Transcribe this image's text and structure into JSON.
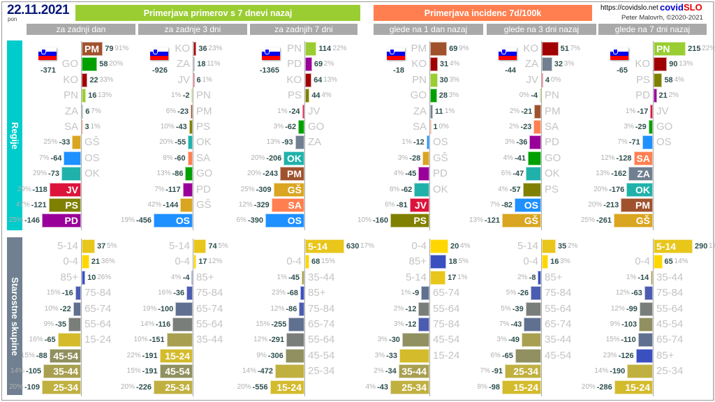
{
  "header": {
    "date": "22.11.2021",
    "weekday": "pon",
    "title_cases": "Primerjava primerov s 7 dnevi nazaj",
    "title_incidence": "Primerjava incidenc 7d/100k",
    "url": "https://covidslo.net",
    "brand_a": "covid",
    "brand_b": "SLO",
    "author": "Peter Malovrh, ©2020-2021",
    "colors": {
      "cases": "#9acd32",
      "incidence": "#ff7f50",
      "sub": "#a9a9a9"
    }
  },
  "subheaders": [
    "za zadnji dan",
    "za zadnje 3 dni",
    "za zadnjih 7 dni",
    "glede na 1 dan nazaj",
    "glede na 3 dni nazaj",
    "glede na 7 dni nazaj"
  ],
  "sections": {
    "regions": "Regije",
    "ages": "Starostne skupine"
  },
  "region_colors": {
    "PM": "#a0522d",
    "GO": "#00a000",
    "KO": "#a00000",
    "PN": "#9acd32",
    "ZA": "#708090",
    "SA": "#ff7f50",
    "GŠ": "#daa520",
    "OS": "#1e90ff",
    "OK": "#20b2aa",
    "JV": "#dc143c",
    "PS": "#808000",
    "PD": "#990099"
  },
  "age_colors": {
    "0-4": "#ffd700",
    "5-14": "#e8c61a",
    "15-24": "#d4bb2c",
    "25-34": "#c0b040",
    "35-44": "#a8a050",
    "45-54": "#909060",
    "55-64": "#7a7e7a",
    "65-74": "#607090",
    "75-84": "#4c5cb0",
    "85+": "#3a50c0"
  },
  "panels": [
    {
      "total": "-371",
      "regions": [
        [
          "PM",
          79,
          "91%"
        ],
        [
          "GO",
          58,
          "20%"
        ],
        [
          "KO",
          22,
          "33%"
        ],
        [
          "PN",
          16,
          "13%"
        ],
        [
          "ZA",
          6,
          "7%"
        ],
        [
          "SA",
          3,
          "1%"
        ],
        [
          "GŠ",
          -33,
          "25%"
        ],
        [
          "OS",
          -64,
          "7%"
        ],
        [
          "OK",
          -73,
          "29%"
        ],
        [
          "JV",
          -118,
          "29%"
        ],
        [
          "PS",
          -121,
          "47%"
        ],
        [
          "PD",
          -146,
          "25%"
        ]
      ],
      "ages": [
        [
          "5-14",
          37,
          "5%"
        ],
        [
          "0-4",
          21,
          "36%"
        ],
        [
          "85+",
          10,
          "26%"
        ],
        [
          "75-84",
          -16,
          "15%"
        ],
        [
          "65-74",
          -22,
          "10%"
        ],
        [
          "55-64",
          -35,
          "9%"
        ],
        [
          "15-24",
          -65,
          "16%"
        ],
        [
          "45-54",
          -88,
          "15%"
        ],
        [
          "35-44",
          -105,
          "14%"
        ],
        [
          "25-34",
          -109,
          "20%"
        ]
      ]
    },
    {
      "total": "-926",
      "regions": [
        [
          "KO",
          36,
          "23%"
        ],
        [
          "ZA",
          18,
          "11%"
        ],
        [
          "JV",
          6,
          "1%"
        ],
        [
          "PN",
          -2,
          "1%"
        ],
        [
          "PM",
          -23,
          "6%"
        ],
        [
          "PS",
          -43,
          "10%"
        ],
        [
          "OK",
          -55,
          "20%"
        ],
        [
          "SA",
          -60,
          "8%"
        ],
        [
          "GO",
          -86,
          "13%"
        ],
        [
          "PD",
          -117,
          "7%"
        ],
        [
          "GŠ",
          -144,
          "42%"
        ],
        [
          "OS",
          -456,
          "19%"
        ]
      ],
      "ages": [
        [
          "5-14",
          74,
          "5%"
        ],
        [
          "0-4",
          17,
          "12%"
        ],
        [
          "85+",
          -4,
          "4%"
        ],
        [
          "75-84",
          -36,
          "16%"
        ],
        [
          "65-74",
          -100,
          "19%"
        ],
        [
          "55-64",
          -116,
          "14%"
        ],
        [
          "35-44",
          -151,
          "10%"
        ],
        [
          "15-24",
          -191,
          "22%"
        ],
        [
          "45-54",
          -191,
          "15%"
        ],
        [
          "25-34",
          -226,
          "20%"
        ]
      ]
    },
    {
      "total": "-1365",
      "regions": [
        [
          "PN",
          114,
          "22%"
        ],
        [
          "PD",
          69,
          "2%"
        ],
        [
          "KO",
          64,
          "13%"
        ],
        [
          "PS",
          44,
          "4%"
        ],
        [
          "JV",
          -24,
          "1%"
        ],
        [
          "GO",
          -62,
          "3%"
        ],
        [
          "ZA",
          -93,
          "13%"
        ],
        [
          "OK",
          -206,
          "20%"
        ],
        [
          "PM",
          -243,
          "20%"
        ],
        [
          "GŠ",
          -309,
          "25%"
        ],
        [
          "SA",
          -329,
          "12%"
        ],
        [
          "OS",
          -390,
          "6%"
        ]
      ],
      "ages": [
        [
          "5-14",
          630,
          "17%"
        ],
        [
          "0-4",
          68,
          "15%"
        ],
        [
          "35-44",
          -45,
          "1%"
        ],
        [
          "85+",
          -68,
          "23%"
        ],
        [
          "75-84",
          -86,
          "12%"
        ],
        [
          "65-74",
          -255,
          "15%"
        ],
        [
          "55-64",
          -291,
          "12%"
        ],
        [
          "45-54",
          -306,
          "9%"
        ],
        [
          "25-34",
          -472,
          "14%"
        ],
        [
          "15-24",
          -556,
          "20%"
        ]
      ]
    },
    {
      "total": "-18",
      "regions": [
        [
          "PM",
          69,
          "9%"
        ],
        [
          "KO",
          31,
          "4%"
        ],
        [
          "PN",
          30,
          "3%"
        ],
        [
          "GO",
          28,
          "3%"
        ],
        [
          "ZA",
          11,
          "1%"
        ],
        [
          "SA",
          1,
          "0%"
        ],
        [
          "OS",
          -12,
          "1%"
        ],
        [
          "GŠ",
          -28,
          "3%"
        ],
        [
          "PD",
          -45,
          "4%"
        ],
        [
          "OK",
          -62,
          "8%"
        ],
        [
          "JV",
          -81,
          "6%"
        ],
        [
          "PS",
          -160,
          "10%"
        ]
      ],
      "ages": [
        [
          "0-4",
          20,
          "4%"
        ],
        [
          "85+",
          18,
          "5%"
        ],
        [
          "5-14",
          17,
          "1%"
        ],
        [
          "65-74",
          -9,
          "1%"
        ],
        [
          "55-64",
          -12,
          "2%"
        ],
        [
          "75-84",
          -12,
          "3%"
        ],
        [
          "45-54",
          -30,
          "3%"
        ],
        [
          "15-24",
          -33,
          "3%"
        ],
        [
          "35-44",
          -34,
          "2%"
        ],
        [
          "25-34",
          -43,
          "4%"
        ]
      ]
    },
    {
      "total": "-44",
      "regions": [
        [
          "KO",
          51,
          "7%"
        ],
        [
          "ZA",
          32,
          "3%"
        ],
        [
          "JV",
          4,
          "0%"
        ],
        [
          "PN",
          -4,
          "0%"
        ],
        [
          "PM",
          -21,
          "2%"
        ],
        [
          "SA",
          -23,
          "2%"
        ],
        [
          "PD",
          -36,
          "3%"
        ],
        [
          "GO",
          -41,
          "4%"
        ],
        [
          "OK",
          -47,
          "6%"
        ],
        [
          "PS",
          -57,
          "4%"
        ],
        [
          "OS",
          -82,
          "7%"
        ],
        [
          "GŠ",
          -121,
          "13%"
        ]
      ],
      "ages": [
        [
          "5-14",
          35,
          "2%"
        ],
        [
          "0-4",
          16,
          "3%"
        ],
        [
          "85+",
          -8,
          "2%"
        ],
        [
          "75-84",
          -26,
          "5%"
        ],
        [
          "55-64",
          -39,
          "5%"
        ],
        [
          "65-74",
          -43,
          "7%"
        ],
        [
          "35-44",
          -49,
          "3%"
        ],
        [
          "45-54",
          -65,
          "6%"
        ],
        [
          "25-34",
          -91,
          "7%"
        ],
        [
          "15-24",
          -98,
          "8%"
        ]
      ]
    },
    {
      "total": "-65",
      "regions": [
        [
          "PN",
          215,
          "22%"
        ],
        [
          "KO",
          90,
          "13%"
        ],
        [
          "PS",
          58,
          "4%"
        ],
        [
          "PD",
          21,
          "2%"
        ],
        [
          "JV",
          -17,
          "1%"
        ],
        [
          "GO",
          -29,
          "3%"
        ],
        [
          "OS",
          -71,
          "7%"
        ],
        [
          "SA",
          -128,
          "12%"
        ],
        [
          "ZA",
          -162,
          "13%"
        ],
        [
          "OK",
          -176,
          "20%"
        ],
        [
          "PM",
          -213,
          "20%"
        ],
        [
          "GŠ",
          -261,
          "25%"
        ]
      ],
      "ages": [
        [
          "5-14",
          290,
          "17%"
        ],
        [
          "0-4",
          65,
          "14%"
        ],
        [
          "35-44",
          -14,
          "1%"
        ],
        [
          "75-84",
          -63,
          "12%"
        ],
        [
          "55-64",
          -99,
          "12%"
        ],
        [
          "45-54",
          -103,
          "9%"
        ],
        [
          "65-74",
          -110,
          "15%"
        ],
        [
          "85+",
          -126,
          "23%"
        ],
        [
          "25-34",
          -190,
          "14%"
        ],
        [
          "15-24",
          -286,
          "20%"
        ]
      ]
    }
  ]
}
